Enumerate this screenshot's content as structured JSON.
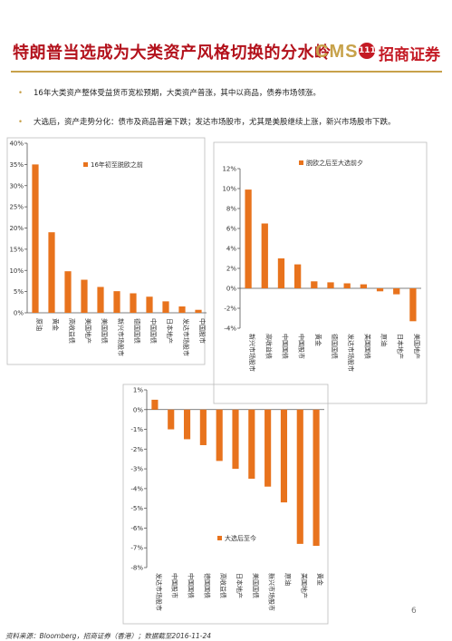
{
  "title": "特朗普当选成为大类资产风格切换的分水岭",
  "logo": {
    "latin": "CMS",
    "seal": "111",
    "chinese": "招商证券"
  },
  "bullets": [
    "16年大类资产整体受益货币宽松预期，大类资产普涨，其中以商品，债券市场领涨。",
    "大选后，资产走势分化：债市及商品普遍下跌；发达市场股市，尤其是美股继续上涨，新兴市场股市下跌。"
  ],
  "colors": {
    "bar": "#e8731d",
    "title": "#b3121c",
    "gold": "#c8a14a"
  },
  "chart_data": [
    {
      "type": "bar",
      "legend": "16年初至脱欧之前",
      "categories": [
        "原油",
        "黄金",
        "高收益债",
        "美国地产",
        "美国国债",
        "新兴市场股市",
        "德国国债",
        "中国国债",
        "日本地产",
        "发达市场股市",
        "中国股市"
      ],
      "values": [
        35,
        19,
        9.8,
        7.8,
        6.1,
        5.1,
        4.6,
        3.8,
        2.7,
        1.5,
        0.7
      ],
      "ylim": [
        0,
        40
      ],
      "yticks": [
        "0%",
        "5%",
        "10%",
        "15%",
        "20%",
        "25%",
        "30%",
        "35%",
        "40%"
      ]
    },
    {
      "type": "bar",
      "legend": "脱欧之后至大选前夕",
      "categories": [
        "新兴市场股市",
        "高收益债",
        "中国国债",
        "中国股市",
        "黄金",
        "德国国债",
        "发达市场股市",
        "美国国债",
        "原油",
        "日本地产",
        "美国地产"
      ],
      "values": [
        9.9,
        6.5,
        3.0,
        2.4,
        0.7,
        0.6,
        0.5,
        0.4,
        -0.3,
        -0.6,
        -3.3
      ],
      "ylim": [
        -4,
        12
      ],
      "yticks": [
        "-4%",
        "-2%",
        "0%",
        "2%",
        "4%",
        "6%",
        "8%",
        "10%",
        "12%"
      ]
    },
    {
      "type": "bar",
      "legend": "大选后至今",
      "categories": [
        "发达市场股市",
        "中国股市",
        "中国国债",
        "德国国债",
        "高收益债",
        "日本地产",
        "美国国债",
        "新兴市场股市",
        "原油",
        "美国地产",
        "黄金"
      ],
      "values": [
        0.5,
        -1.0,
        -1.5,
        -1.8,
        -2.6,
        -3.0,
        -3.5,
        -3.9,
        -4.7,
        -6.8,
        -6.9
      ],
      "ylim": [
        -8,
        1
      ],
      "yticks": [
        "-8%",
        "-7%",
        "-6%",
        "-5%",
        "-4%",
        "-3%",
        "-2%",
        "-1%",
        "0%",
        "1%"
      ]
    }
  ],
  "source": "资料来源：Bloomberg，招商证券（香港）；数据截至2016-11-24",
  "page_number": "6"
}
